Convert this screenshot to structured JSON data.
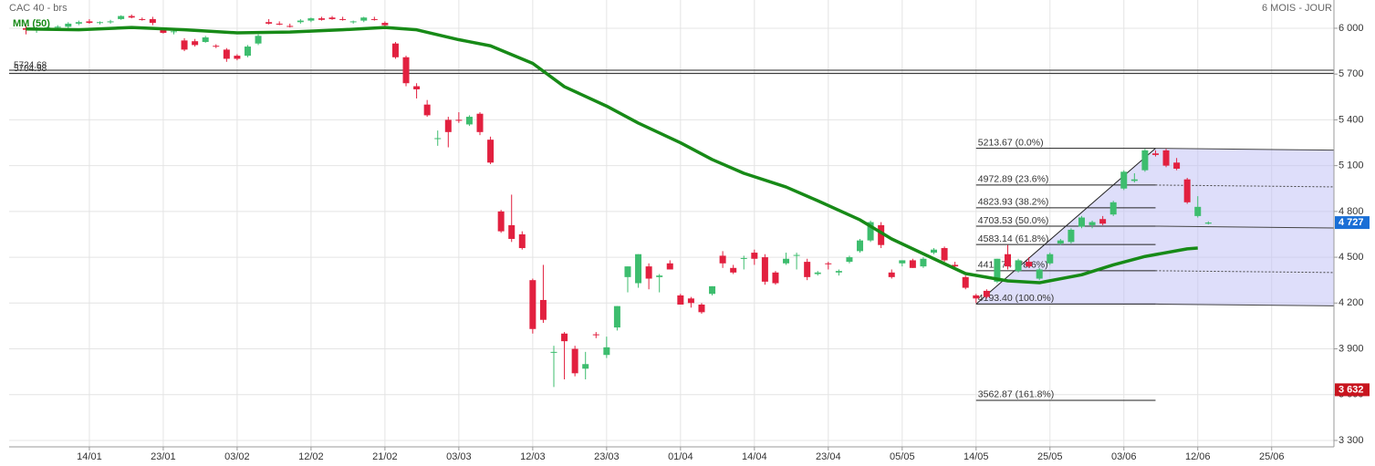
{
  "chart_data": {
    "type": "candlestick",
    "title": "CAC 40 - brs",
    "subtitle": "6 MOIS - JOUR",
    "up_color": "#3dbd6e",
    "down_color": "#e2203f",
    "xlim": [
      -1.6,
      123.9
    ],
    "xticks": [
      {
        "value": 6,
        "label": "14/01"
      },
      {
        "value": 13,
        "label": "23/01"
      },
      {
        "value": 20,
        "label": "03/02"
      },
      {
        "value": 27,
        "label": "12/02"
      },
      {
        "value": 34,
        "label": "21/02"
      },
      {
        "value": 41,
        "label": "03/03"
      },
      {
        "value": 48,
        "label": "12/03"
      },
      {
        "value": 55,
        "label": "23/03"
      },
      {
        "value": 62,
        "label": "01/04"
      },
      {
        "value": 69,
        "label": "14/04"
      },
      {
        "value": 76,
        "label": "23/04"
      },
      {
        "value": 83,
        "label": "05/05"
      },
      {
        "value": 90,
        "label": "14/05"
      },
      {
        "value": 97,
        "label": "25/05"
      },
      {
        "value": 104,
        "label": "03/06"
      },
      {
        "value": 111,
        "label": "12/06"
      },
      {
        "value": 118,
        "label": "25/06"
      }
    ],
    "ylim": [
      3258,
      6185
    ],
    "yticks": [
      {
        "value": 3300,
        "label": "3 300"
      },
      {
        "value": 3600,
        "label": "3 600"
      },
      {
        "value": 3900,
        "label": "3 900"
      },
      {
        "value": 4200,
        "label": "4 200"
      },
      {
        "value": 4500,
        "label": "4 500"
      },
      {
        "value": 4800,
        "label": "4 800"
      },
      {
        "value": 5100,
        "label": "5 100"
      },
      {
        "value": 5400,
        "label": "5 400"
      },
      {
        "value": 5700,
        "label": "5 700"
      },
      {
        "value": 6000,
        "label": "6 000"
      }
    ],
    "grid": true,
    "ohlc": [
      [
        6000,
        6020,
        5960,
        5990
      ],
      [
        5990,
        6010,
        5970,
        6000
      ],
      [
        5995,
        6010,
        5985,
        6005
      ],
      [
        6005,
        6020,
        5995,
        6010
      ],
      [
        6010,
        6040,
        6000,
        6030
      ],
      [
        6030,
        6050,
        6020,
        6040
      ],
      [
        6045,
        6060,
        6030,
        6035
      ],
      [
        6035,
        6045,
        6025,
        6040
      ],
      [
        6040,
        6055,
        6030,
        6045
      ],
      [
        6060,
        6085,
        6055,
        6080
      ],
      [
        6080,
        6090,
        6065,
        6070
      ],
      [
        6060,
        6070,
        6050,
        6055
      ],
      [
        6060,
        6075,
        6020,
        6035
      ],
      [
        5990,
        6000,
        5965,
        5970
      ],
      [
        5975,
        5990,
        5960,
        5980
      ],
      [
        5920,
        5935,
        5850,
        5860
      ],
      [
        5915,
        5930,
        5880,
        5890
      ],
      [
        5910,
        5950,
        5905,
        5940
      ],
      [
        5885,
        5895,
        5870,
        5880
      ],
      [
        5860,
        5870,
        5780,
        5800
      ],
      [
        5820,
        5830,
        5790,
        5800
      ],
      [
        5820,
        5890,
        5810,
        5880
      ],
      [
        5900,
        5960,
        5890,
        5950
      ],
      [
        6040,
        6060,
        6025,
        6030
      ],
      [
        6030,
        6045,
        6020,
        6025
      ],
      [
        6015,
        6030,
        6005,
        6010
      ],
      [
        6040,
        6060,
        6030,
        6050
      ],
      [
        6050,
        6070,
        6040,
        6065
      ],
      [
        6065,
        6075,
        6050,
        6055
      ],
      [
        6070,
        6080,
        6055,
        6060
      ],
      [
        6060,
        6075,
        6050,
        6055
      ],
      [
        6040,
        6050,
        6030,
        6045
      ],
      [
        6050,
        6075,
        6040,
        6070
      ],
      [
        6060,
        6075,
        6050,
        6055
      ],
      [
        6035,
        6045,
        6015,
        6020
      ],
      [
        5900,
        5910,
        5800,
        5810
      ],
      [
        5810,
        5820,
        5620,
        5640
      ],
      [
        5620,
        5640,
        5540,
        5600
      ],
      [
        5500,
        5530,
        5420,
        5430
      ],
      [
        5280,
        5330,
        5230,
        5280
      ],
      [
        5400,
        5420,
        5220,
        5320
      ],
      [
        5400,
        5450,
        5380,
        5395
      ],
      [
        5370,
        5430,
        5360,
        5420
      ],
      [
        5440,
        5450,
        5300,
        5320
      ],
      [
        5270,
        5290,
        5110,
        5120
      ],
      [
        4800,
        4810,
        4660,
        4670
      ],
      [
        4710,
        4910,
        4600,
        4620
      ],
      [
        4650,
        4670,
        4550,
        4560
      ],
      [
        4350,
        4360,
        4000,
        4030
      ],
      [
        4220,
        4450,
        4070,
        4090
      ],
      [
        3880,
        3920,
        3650,
        3880
      ],
      [
        4000,
        4010,
        3700,
        3950
      ],
      [
        3900,
        3920,
        3720,
        3740
      ],
      [
        3770,
        3880,
        3700,
        3800
      ],
      [
        3995,
        4010,
        3970,
        3990
      ],
      [
        3860,
        3980,
        3840,
        3910
      ],
      [
        4040,
        4180,
        4020,
        4180
      ],
      [
        4370,
        4440,
        4270,
        4440
      ],
      [
        4330,
        4520,
        4300,
        4520
      ],
      [
        4440,
        4460,
        4290,
        4360
      ],
      [
        4370,
        4390,
        4270,
        4380
      ],
      [
        4460,
        4480,
        4420,
        4420
      ],
      [
        4250,
        4260,
        4190,
        4190
      ],
      [
        4230,
        4240,
        4170,
        4200
      ],
      [
        4190,
        4200,
        4130,
        4140
      ],
      [
        4260,
        4310,
        4250,
        4310
      ],
      [
        4510,
        4540,
        4430,
        4460
      ],
      [
        4430,
        4450,
        4390,
        4400
      ],
      [
        4490,
        4510,
        4420,
        4495
      ],
      [
        4530,
        4550,
        4450,
        4490
      ],
      [
        4500,
        4520,
        4320,
        4340
      ],
      [
        4400,
        4410,
        4320,
        4330
      ],
      [
        4460,
        4530,
        4450,
        4490
      ],
      [
        4510,
        4530,
        4420,
        4515
      ],
      [
        4470,
        4490,
        4350,
        4370
      ],
      [
        4390,
        4410,
        4380,
        4400
      ],
      [
        4460,
        4470,
        4420,
        4455
      ],
      [
        4400,
        4420,
        4380,
        4410
      ],
      [
        4470,
        4510,
        4460,
        4500
      ],
      [
        4540,
        4620,
        4530,
        4610
      ],
      [
        4610,
        4740,
        4600,
        4730
      ],
      [
        4710,
        4730,
        4560,
        4580
      ],
      [
        4400,
        4420,
        4360,
        4370
      ],
      [
        4460,
        4480,
        4440,
        4480
      ],
      [
        4480,
        4490,
        4430,
        4430
      ],
      [
        4440,
        4500,
        4430,
        4490
      ],
      [
        4530,
        4560,
        4520,
        4550
      ],
      [
        4560,
        4570,
        4470,
        4480
      ],
      [
        4450,
        4470,
        4430,
        4440
      ],
      [
        4370,
        4380,
        4290,
        4300
      ],
      [
        4250,
        4260,
        4200,
        4230
      ],
      [
        4280,
        4290,
        4230,
        4240
      ],
      [
        4340,
        4490,
        4330,
        4490
      ],
      [
        4520,
        4580,
        4420,
        4440
      ],
      [
        4410,
        4490,
        4400,
        4480
      ],
      [
        4470,
        4500,
        4430,
        4440
      ],
      [
        4360,
        4430,
        4350,
        4420
      ],
      [
        4460,
        4530,
        4450,
        4520
      ],
      [
        4590,
        4620,
        4580,
        4610
      ],
      [
        4600,
        4690,
        4590,
        4680
      ],
      [
        4700,
        4770,
        4690,
        4760
      ],
      [
        4710,
        4740,
        4690,
        4730
      ],
      [
        4750,
        4770,
        4710,
        4720
      ],
      [
        4780,
        4870,
        4770,
        4860
      ],
      [
        4950,
        5070,
        4940,
        5060
      ],
      [
        5000,
        5050,
        4990,
        5010
      ],
      [
        5070,
        5210,
        5060,
        5200
      ],
      [
        5180,
        5200,
        5160,
        5170
      ],
      [
        5200,
        5210,
        5090,
        5100
      ],
      [
        5120,
        5150,
        5070,
        5080
      ],
      [
        5010,
        5020,
        4850,
        4860
      ],
      [
        4770,
        4900,
        4760,
        4830
      ],
      [
        4720,
        4735,
        4715,
        4727
      ]
    ],
    "ma": {
      "name": "MM (50)",
      "color": "#178a17",
      "x": [
        0,
        5,
        10,
        15,
        20,
        25,
        30,
        34,
        37,
        41,
        44,
        48,
        51,
        55,
        58,
        62,
        65,
        68,
        72,
        75,
        79,
        82,
        86,
        89,
        93,
        96,
        100,
        103,
        106,
        110,
        111
      ],
      "values": [
        5995,
        5990,
        6005,
        5990,
        5970,
        5975,
        5990,
        6005,
        5990,
        5925,
        5885,
        5770,
        5617,
        5490,
        5379,
        5250,
        5140,
        5050,
        4960,
        4870,
        4745,
        4620,
        4490,
        4393,
        4345,
        4333,
        4385,
        4450,
        4505,
        4555,
        4560
      ]
    },
    "hlines": [
      {
        "value": 5724.68,
        "label": "5724.68"
      },
      {
        "value": 5704.98,
        "label": "5704.98"
      }
    ],
    "fib": {
      "start": 90,
      "end": 107,
      "levels": [
        {
          "value": 5213.67,
          "label": "5213.67 (0.0%)",
          "style": "edge"
        },
        {
          "value": 4972.89,
          "label": "4972.89 (23.6%)",
          "style": "dotted"
        },
        {
          "value": 4823.93,
          "label": "4823.93 (38.2%)",
          "style": "none"
        },
        {
          "value": 4703.53,
          "label": "4703.53 (50.0%)",
          "style": "solid"
        },
        {
          "value": 4583.14,
          "label": "4583.14 (61.8%)",
          "style": "none"
        },
        {
          "value": 4411.74,
          "label": "4411.74 (78.6%)",
          "style": "dotted"
        },
        {
          "value": 4193.4,
          "label": "4193.40 (100.0%)",
          "style": "edge"
        },
        {
          "value": 3562.87,
          "label": "3562.87 (161.8%)",
          "style": "none"
        }
      ]
    },
    "tags": [
      {
        "value": 4727,
        "label": "4 727",
        "color": "#1a6fd6"
      },
      {
        "value": 3632,
        "label": "3 632",
        "color": "#c8141e"
      }
    ]
  }
}
